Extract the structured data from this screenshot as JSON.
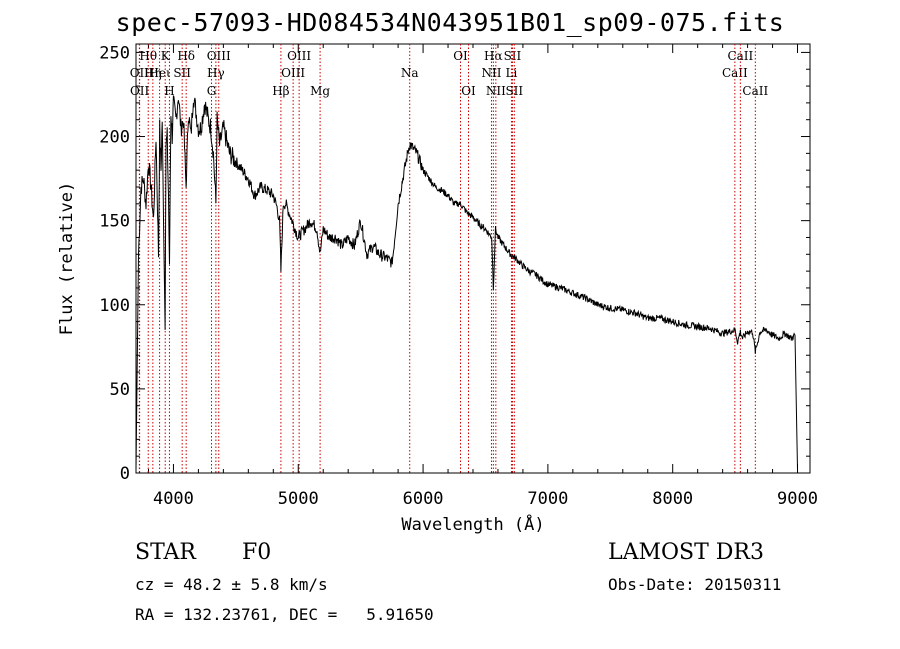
{
  "chart_data": {
    "type": "line",
    "title": "spec-57093-HD084534N043951B01_sp09-075.fits",
    "xlabel": "Wavelength (Å)",
    "ylabel": "Flux (relative)",
    "xlim": [
      3700,
      9100
    ],
    "ylim": [
      0,
      255
    ],
    "xticks": [
      4000,
      5000,
      6000,
      7000,
      8000,
      9000
    ],
    "yticks": [
      0,
      50,
      100,
      150,
      200,
      250
    ],
    "grid": false,
    "series": [
      {
        "name": "flux",
        "x": [
          3700,
          3720,
          3740,
          3760,
          3780,
          3800,
          3820,
          3840,
          3860,
          3880,
          3890,
          3900,
          3910,
          3920,
          3933,
          3940,
          3950,
          3960,
          3968,
          3980,
          3990,
          4000,
          4020,
          4040,
          4060,
          4080,
          4101,
          4120,
          4140,
          4160,
          4180,
          4200,
          4220,
          4250,
          4280,
          4300,
          4320,
          4340,
          4350,
          4370,
          4400,
          4450,
          4500,
          4550,
          4600,
          4650,
          4700,
          4750,
          4800,
          4830,
          4850,
          4861,
          4880,
          4900,
          4950,
          5000,
          5050,
          5100,
          5150,
          5175,
          5200,
          5250,
          5300,
          5350,
          5400,
          5450,
          5500,
          5550,
          5600,
          5650,
          5700,
          5750,
          5760,
          5800,
          5850,
          5890,
          5900,
          5950,
          6000,
          6050,
          6100,
          6150,
          6200,
          6250,
          6300,
          6350,
          6400,
          6450,
          6500,
          6550,
          6563,
          6580,
          6600,
          6650,
          6700,
          6750,
          6800,
          6850,
          6900,
          6950,
          7000,
          7100,
          7200,
          7300,
          7400,
          7500,
          7600,
          7700,
          7800,
          7900,
          8000,
          8100,
          8200,
          8300,
          8400,
          8500,
          8520,
          8542,
          8560,
          8600,
          8640,
          8662,
          8700,
          8750,
          8800,
          8850,
          8900,
          8950,
          8980,
          9000
        ],
        "values": [
          2,
          130,
          170,
          175,
          160,
          185,
          170,
          150,
          200,
          130,
          205,
          180,
          210,
          155,
          90,
          195,
          200,
          165,
          120,
          215,
          200,
          220,
          210,
          225,
          205,
          210,
          170,
          215,
          200,
          225,
          215,
          205,
          205,
          220,
          210,
          205,
          190,
          160,
          210,
          195,
          205,
          190,
          185,
          180,
          175,
          165,
          170,
          168,
          165,
          158,
          150,
          120,
          160,
          160,
          150,
          140,
          145,
          150,
          145,
          130,
          145,
          140,
          140,
          135,
          140,
          135,
          150,
          130,
          135,
          130,
          128,
          125,
          130,
          160,
          180,
          195,
          195,
          190,
          180,
          175,
          170,
          168,
          165,
          160,
          160,
          155,
          152,
          148,
          145,
          140,
          110,
          145,
          140,
          135,
          130,
          127,
          123,
          120,
          118,
          115,
          112,
          110,
          107,
          104,
          100,
          98,
          97,
          95,
          92,
          92,
          90,
          88,
          87,
          86,
          83,
          85,
          78,
          84,
          80,
          84,
          84,
          72,
          84,
          85,
          82,
          80,
          83,
          80,
          82,
          2
        ]
      }
    ],
    "lines": [
      {
        "label": "Hθ",
        "x": 3798,
        "row": 1
      },
      {
        "label": "OII",
        "x": 3727,
        "row": 2
      },
      {
        "label": "OII",
        "x": 3729,
        "row": 3
      },
      {
        "label": "Hη",
        "x": 3835,
        "row": 2
      },
      {
        "label": "Heι",
        "x": 3889,
        "row": 2
      },
      {
        "label": "K",
        "x": 3934,
        "row": 1
      },
      {
        "label": "H",
        "x": 3968,
        "row": 3
      },
      {
        "label": "SII",
        "x": 4070,
        "row": 2
      },
      {
        "label": "Hδ",
        "x": 4102,
        "row": 1
      },
      {
        "label": "OIII",
        "x": 4363,
        "row": 1
      },
      {
        "label": "Hγ",
        "x": 4340,
        "row": 2
      },
      {
        "label": "G",
        "x": 4305,
        "row": 3
      },
      {
        "label": "Hβ",
        "x": 4861,
        "row": 3
      },
      {
        "label": "OIII",
        "x": 4959,
        "row": 2
      },
      {
        "label": "OIII",
        "x": 5007,
        "row": 1
      },
      {
        "label": "Mg",
        "x": 5175,
        "row": 3
      },
      {
        "label": "Na",
        "x": 5893,
        "row": 2
      },
      {
        "label": "OI",
        "x": 6300,
        "row": 1
      },
      {
        "label": "OI",
        "x": 6364,
        "row": 3
      },
      {
        "label": "NII",
        "x": 6548,
        "row": 2
      },
      {
        "label": "Hα",
        "x": 6563,
        "row": 1
      },
      {
        "label": "NII",
        "x": 6583,
        "row": 3
      },
      {
        "label": "SII",
        "x": 6716,
        "row": 1
      },
      {
        "label": "Li",
        "x": 6708,
        "row": 2
      },
      {
        "label": "SII",
        "x": 6731,
        "row": 3
      },
      {
        "label": "CaII",
        "x": 8498,
        "row": 2
      },
      {
        "label": "CaII",
        "x": 8542,
        "row": 1
      },
      {
        "label": "CaII",
        "x": 8662,
        "row": 3
      }
    ]
  },
  "info": {
    "object_class": "STAR",
    "subclass": "F0",
    "survey": "LAMOST DR3",
    "cz": "cz = 48.2 ± 5.8 km/s",
    "obs_date": "Obs-Date: 20150311",
    "radec": "RA = 132.23761, DEC =   5.91650"
  },
  "colors": {
    "axis": "#000000",
    "line_marker": "#cc0000",
    "background": "#ffffff"
  }
}
